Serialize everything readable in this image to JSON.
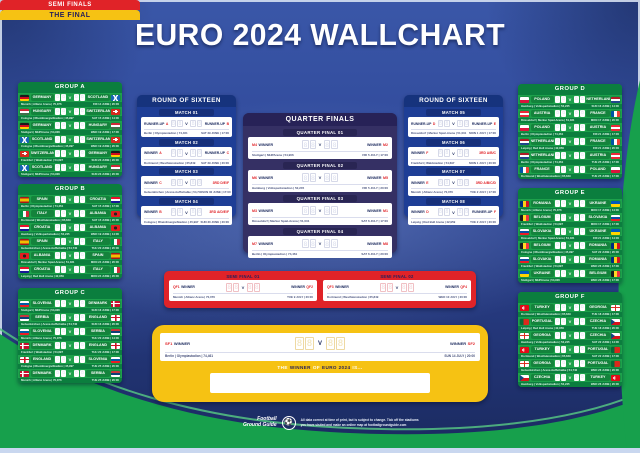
{
  "title": "EURO 2024 WALLCHART",
  "ui": {
    "versus": "V",
    "score_placeholder": "8"
  },
  "colors": {
    "green": "#1da14b",
    "dark_green": "#0b7e3e",
    "navy": "#1e3e96",
    "indigo": "#353064",
    "red": "#e02328",
    "yellow": "#f6c213",
    "background_blue": "#30499a",
    "accent_red": "#e02328"
  },
  "groups": [
    {
      "name": "GROUP A",
      "pos": "pA",
      "matches": [
        {
          "home": "GERMANY",
          "away": "SCOTLAND",
          "home_flag": "de",
          "away_flag": "sct",
          "venue": "Munich | Allianz Arena | 70,076",
          "when": "FRI 14 JUNE | 20:00"
        },
        {
          "home": "HUNGARY",
          "away": "SWITZERLAND",
          "home_flag": "hu",
          "away_flag": "ch",
          "venue": "Cologne | RheinEnergieStadion | 45,997",
          "when": "SAT 15 JUNE | 14:00"
        },
        {
          "home": "GERMANY",
          "away": "HUNGARY",
          "home_flag": "de",
          "away_flag": "hu",
          "venue": "Stuttgart | MHPArena | 54,906",
          "when": "WED 19 JUNE | 17:00"
        },
        {
          "home": "SCOTLAND",
          "away": "SWITZERLAND",
          "home_flag": "sct",
          "away_flag": "ch",
          "venue": "Cologne | RheinEnergieStadion | 45,997",
          "when": "WED 19 JUNE | 20:00"
        },
        {
          "home": "SWITZERLAND",
          "away": "GERMANY",
          "home_flag": "ch",
          "away_flag": "de",
          "venue": "Frankfurt | Waldstadion | 54,697",
          "when": "SUN 23 JUNE | 20:00"
        },
        {
          "home": "SCOTLAND",
          "away": "HUNGARY",
          "home_flag": "sct",
          "away_flag": "hu",
          "venue": "Stuttgart | MHPArena | 54,906",
          "when": "SUN 23 JUNE | 20:00"
        }
      ]
    },
    {
      "name": "GROUP B",
      "pos": "pB",
      "matches": [
        {
          "home": "SPAIN",
          "away": "CROATIA",
          "home_flag": "es",
          "away_flag": "hr",
          "venue": "Berlin | Olympiastadion | 74,461",
          "when": "SAT 15 JUNE | 17:00"
        },
        {
          "home": "ITALY",
          "away": "ALBANIA",
          "home_flag": "it",
          "away_flag": "al",
          "venue": "Dortmund | Westfalenstadion | 65,849",
          "when": "SAT 15 JUNE | 20:00"
        },
        {
          "home": "CROATIA",
          "away": "ALBANIA",
          "home_flag": "hr",
          "away_flag": "al",
          "venue": "Hamburg | Volksparkstadion | 52,245",
          "when": "WED 19 JUNE | 14:00"
        },
        {
          "home": "SPAIN",
          "away": "ITALY",
          "home_flag": "es",
          "away_flag": "it",
          "venue": "Gelsenkirchen | Arena AufSchalke | 54,740",
          "when": "THU 20 JUNE | 20:00"
        },
        {
          "home": "ALBANIA",
          "away": "SPAIN",
          "home_flag": "al",
          "away_flag": "es",
          "venue": "Düsseldorf | Merkur Spiel-Arena | 51,031",
          "when": "MON 24 JUNE | 20:00"
        },
        {
          "home": "CROATIA",
          "away": "ITALY",
          "home_flag": "hr",
          "away_flag": "it",
          "venue": "Leipzig | Red Bull Arena | 42,959",
          "when": "MON 24 JUNE | 20:00"
        }
      ]
    },
    {
      "name": "GROUP C",
      "pos": "pC",
      "matches": [
        {
          "home": "SLOVENIA",
          "away": "DENMARK",
          "home_flag": "si",
          "away_flag": "dk",
          "venue": "Stuttgart | MHPArena | 54,906",
          "when": "SUN 16 JUNE | 17:00"
        },
        {
          "home": "SERBIA",
          "away": "ENGLAND",
          "home_flag": "rs",
          "away_flag": "en",
          "venue": "Gelsenkirchen | Arena AufSchalke | 54,740",
          "when": "SUN 16 JUNE | 20:00"
        },
        {
          "home": "SLOVENIA",
          "away": "SERBIA",
          "home_flag": "si",
          "away_flag": "rs",
          "venue": "Munich | Allianz Arena | 70,076",
          "when": "THU 20 JUNE | 14:00"
        },
        {
          "home": "DENMARK",
          "away": "ENGLAND",
          "home_flag": "dk",
          "away_flag": "en",
          "venue": "Frankfurt | Waldstadion | 54,697",
          "when": "THU 20 JUNE | 17:00"
        },
        {
          "home": "ENGLAND",
          "away": "SLOVENIA",
          "home_flag": "en",
          "away_flag": "si",
          "venue": "Cologne | RheinEnergieStadion | 45,997",
          "when": "TUE 25 JUNE | 20:00"
        },
        {
          "home": "DENMARK",
          "away": "SERBIA",
          "home_flag": "dk",
          "away_flag": "rs",
          "venue": "Munich | Allianz Arena | 70,076",
          "when": "TUE 25 JUNE | 20:00"
        }
      ]
    },
    {
      "name": "GROUP D",
      "pos": "pD",
      "matches": [
        {
          "home": "POLAND",
          "away": "NETHERLANDS",
          "home_flag": "pl",
          "away_flag": "nl",
          "venue": "Hamburg | Volksparkstadion | 52,245",
          "when": "SUN 16 JUNE | 14:00"
        },
        {
          "home": "AUSTRIA",
          "away": "FRANCE",
          "home_flag": "at",
          "away_flag": "fr",
          "venue": "Düsseldorf | Merkur Spiel-Arena | 51,031",
          "when": "MON 17 JUNE | 20:00"
        },
        {
          "home": "POLAND",
          "away": "AUSTRIA",
          "home_flag": "pl",
          "away_flag": "at",
          "venue": "Berlin | Olympiastadion | 74,461",
          "when": "FRI 21 JUNE | 17:00"
        },
        {
          "home": "NETHERLANDS",
          "away": "FRANCE",
          "home_flag": "nl",
          "away_flag": "fr",
          "venue": "Leipzig | Red Bull Arena | 42,959",
          "when": "FRI 21 JUNE | 20:00"
        },
        {
          "home": "NETHERLANDS",
          "away": "AUSTRIA",
          "home_flag": "nl",
          "away_flag": "at",
          "venue": "Berlin | Olympiastadion | 74,461",
          "when": "TUE 25 JUNE | 17:00"
        },
        {
          "home": "FRANCE",
          "away": "POLAND",
          "home_flag": "fr",
          "away_flag": "pl",
          "venue": "Dortmund | Westfalenstadion | 65,849",
          "when": "TUE 25 JUNE | 17:00"
        }
      ]
    },
    {
      "name": "GROUP E",
      "pos": "pE",
      "matches": [
        {
          "home": "ROMANIA",
          "away": "UKRAINE",
          "home_flag": "ro",
          "away_flag": "ua",
          "venue": "Munich | Allianz Arena | 70,076",
          "when": "MON 17 JUNE | 14:00"
        },
        {
          "home": "BELGIUM",
          "away": "SLOVAKIA",
          "home_flag": "be",
          "away_flag": "sk",
          "venue": "Frankfurt | Waldstadion | 54,697",
          "when": "MON 17 JUNE | 17:00"
        },
        {
          "home": "SLOVAKIA",
          "away": "UKRAINE",
          "home_flag": "sk",
          "away_flag": "ua",
          "venue": "Düsseldorf | Merkur Spiel-Arena | 51,031",
          "when": "FRI 21 JUNE | 14:00"
        },
        {
          "home": "BELGIUM",
          "away": "ROMANIA",
          "home_flag": "be",
          "away_flag": "ro",
          "venue": "Cologne | RheinEnergieStadion | 45,997",
          "when": "SAT 22 JUNE | 20:00"
        },
        {
          "home": "SLOVAKIA",
          "away": "ROMANIA",
          "home_flag": "sk",
          "away_flag": "ro",
          "venue": "Frankfurt | Waldstadion | 54,697",
          "when": "WED 26 JUNE | 17:00"
        },
        {
          "home": "UKRAINE",
          "away": "BELGIUM",
          "home_flag": "ua",
          "away_flag": "be",
          "venue": "Stuttgart | MHPArena | 54,906",
          "when": "WED 26 JUNE | 17:00"
        }
      ]
    },
    {
      "name": "GROUP F",
      "pos": "pF",
      "matches": [
        {
          "home": "TURKEY",
          "away": "GEORGIA",
          "home_flag": "tr",
          "away_flag": "ge",
          "venue": "Dortmund | Westfalenstadion | 65,849",
          "when": "TUE 18 JUNE | 17:00"
        },
        {
          "home": "PORTUGAL",
          "away": "CZECHIA",
          "home_flag": "pt",
          "away_flag": "cz",
          "venue": "Leipzig | Red Bull Arena | 42,959",
          "when": "TUE 18 JUNE | 20:00"
        },
        {
          "home": "GEORGIA",
          "away": "CZECHIA",
          "home_flag": "ge",
          "away_flag": "cz",
          "venue": "Hamburg | Volksparkstadion | 52,245",
          "when": "SAT 22 JUNE | 14:00"
        },
        {
          "home": "TURKEY",
          "away": "PORTUGAL",
          "home_flag": "tr",
          "away_flag": "pt",
          "venue": "Dortmund | Westfalenstadion | 65,849",
          "when": "SAT 22 JUNE | 17:00"
        },
        {
          "home": "GEORGIA",
          "away": "PORTUGAL",
          "home_flag": "ge",
          "away_flag": "pt",
          "venue": "Gelsenkirchen | Arena AufSchalke | 54,740",
          "when": "WED 26 JUNE | 20:00"
        },
        {
          "home": "CZECHIA",
          "away": "TURKEY",
          "home_flag": "cz",
          "away_flag": "tr",
          "venue": "Hamburg | Volksparkstadion | 52,245",
          "when": "WED 26 JUNE | 20:00"
        }
      ]
    }
  ],
  "r16_panels": [
    {
      "title": "ROUND OF SIXTEEN",
      "matches": [
        {
          "label": "MATCH 01",
          "home": [
            {
              "t": "RUNNER-UP"
            },
            {
              "t": "A",
              "red": true
            }
          ],
          "away": [
            {
              "t": "RUNNER-UP"
            },
            {
              "t": "B",
              "red": true
            }
          ],
          "venue": "Berlin | Olympiastadion | 74,461",
          "when": "SAT 29 JUNE | 17:00"
        },
        {
          "label": "MATCH 02",
          "home": [
            {
              "t": "WINNER"
            },
            {
              "t": "A",
              "red": true
            }
          ],
          "away": [
            {
              "t": "RUNNER-UP"
            },
            {
              "t": "C",
              "red": true
            }
          ],
          "venue": "Dortmund | Westfalenstadion | 65,849",
          "when": "SAT 29 JUNE | 20:00"
        },
        {
          "label": "MATCH 03",
          "home": [
            {
              "t": "WINNER"
            },
            {
              "t": "C",
              "red": true
            }
          ],
          "away": [
            {
              "t": "3RD D/E/F",
              "red": true
            }
          ],
          "venue": "Gelsenkirchen | Arena AufSchalke | 54,740",
          "when": "SUN 30 JUNE | 17:00"
        },
        {
          "label": "MATCH 04",
          "home": [
            {
              "t": "WINNER"
            },
            {
              "t": "B",
              "red": true
            }
          ],
          "away": [
            {
              "t": "3RD A/D/E/F",
              "red": true
            }
          ],
          "venue": "Cologne | RheinEnergieStadion | 45,997",
          "when": "SUN 30 JUNE | 20:00"
        }
      ]
    },
    {
      "title": "ROUND OF SIXTEEN",
      "matches": [
        {
          "label": "MATCH 05",
          "home": [
            {
              "t": "RUNNER-UP"
            },
            {
              "t": "D",
              "red": true
            }
          ],
          "away": [
            {
              "t": "RUNNER-UP"
            },
            {
              "t": "E",
              "red": true
            }
          ],
          "venue": "Düsseldorf | Merkur Spiel-Arena | 51,031",
          "when": "MON 1 JULY | 17:00"
        },
        {
          "label": "MATCH 06",
          "home": [
            {
              "t": "WINNER"
            },
            {
              "t": "F",
              "red": true
            }
          ],
          "away": [
            {
              "t": "3RD A/B/C",
              "red": true
            }
          ],
          "venue": "Frankfurt | Waldstadion | 54,697",
          "when": "MON 1 JULY | 20:00"
        },
        {
          "label": "MATCH 07",
          "home": [
            {
              "t": "WINNER"
            },
            {
              "t": "E",
              "red": true
            }
          ],
          "away": [
            {
              "t": "3RD A/B/C/D",
              "red": true
            }
          ],
          "venue": "Munich | Allianz Arena | 70,076",
          "when": "TUE 2 JULY | 17:00"
        },
        {
          "label": "MATCH 08",
          "home": [
            {
              "t": "WINNER"
            },
            {
              "t": "D",
              "red": true
            }
          ],
          "away": [
            {
              "t": "RUNNER-UP"
            },
            {
              "t": "F",
              "red": true
            }
          ],
          "venue": "Leipzig | Red Bull Arena | 42,959",
          "when": "TUE 2 JULY | 20:00"
        }
      ]
    }
  ],
  "quarter_finals": {
    "title": "QUARTER FINALS",
    "matches": [
      {
        "label": "QUARTER FINAL 01",
        "home": [
          {
            "t": "M4",
            "red": true
          },
          {
            "t": "WINNER"
          }
        ],
        "away": [
          {
            "t": "WINNER"
          },
          {
            "t": "M2",
            "red": true
          }
        ],
        "venue": "Stuttgart | MHPArena | 54,906",
        "when": "FRI 5 JULY | 17:00"
      },
      {
        "label": "QUARTER FINAL 02",
        "home": [
          {
            "t": "M6",
            "red": true
          },
          {
            "t": "WINNER"
          }
        ],
        "away": [
          {
            "t": "WINNER"
          },
          {
            "t": "M5",
            "red": true
          }
        ],
        "venue": "Hamburg | Volksparkstadion | 52,245",
        "when": "FRI 5 JULY | 20:00"
      },
      {
        "label": "QUARTER FINAL 03",
        "home": [
          {
            "t": "M3",
            "red": true
          },
          {
            "t": "WINNER"
          }
        ],
        "away": [
          {
            "t": "WINNER"
          },
          {
            "t": "M1",
            "red": true
          }
        ],
        "venue": "Düsseldorf | Merkur Spiel-Arena | 51,031",
        "when": "SAT 6 JULY | 17:00"
      },
      {
        "label": "QUARTER FINAL 04",
        "home": [
          {
            "t": "M7",
            "red": true
          },
          {
            "t": "WINNER"
          }
        ],
        "away": [
          {
            "t": "WINNER"
          },
          {
            "t": "M8",
            "red": true
          }
        ],
        "venue": "Berlin | Olympiastadion | 74,461",
        "when": "SAT 6 JULY | 20:00"
      }
    ]
  },
  "semi_finals": {
    "title": "SEMI FINALS",
    "matches": [
      {
        "label": "SEMI FINAL 01",
        "home": [
          {
            "t": "QF1",
            "red": true
          },
          {
            "t": "WINNER"
          }
        ],
        "away": [
          {
            "t": "WINNER"
          },
          {
            "t": "QF2",
            "red": true
          }
        ],
        "venue": "Munich | Allianz Arena | 70,076",
        "when": "TUE 9 JULY | 20:00"
      },
      {
        "label": "SEMI FINAL 02",
        "home": [
          {
            "t": "QF3",
            "red": true
          },
          {
            "t": "WINNER"
          }
        ],
        "away": [
          {
            "t": "WINNER"
          },
          {
            "t": "QF4",
            "red": true
          }
        ],
        "venue": "Dortmund | Westfalenstadion | 65,849",
        "when": "WED 10 JULY | 20:00"
      }
    ]
  },
  "the_final": {
    "title": "THE FINAL",
    "match": {
      "home": [
        {
          "t": "SF1",
          "red": true
        },
        {
          "t": "WINNER"
        }
      ],
      "away": [
        {
          "t": "WINNER"
        },
        {
          "t": "SF2",
          "red": true
        }
      ],
      "venue": "Berlin | Olympiastadion | 74,461",
      "when": "SUN 14 JULY | 20:00"
    },
    "winner_segments": [
      "THE",
      "WINNER",
      "OF",
      "EURO 2024",
      "IS..."
    ]
  },
  "footer": {
    "logo_line1": "Football",
    "logo_line2": "Ground Guide",
    "badge_icon": "⚽",
    "note_line1": "All data correct at time of print, but is subject to change. Tick off the stadiums",
    "note_line2": "you have visited and make an online map at footballgroundguide.com"
  }
}
